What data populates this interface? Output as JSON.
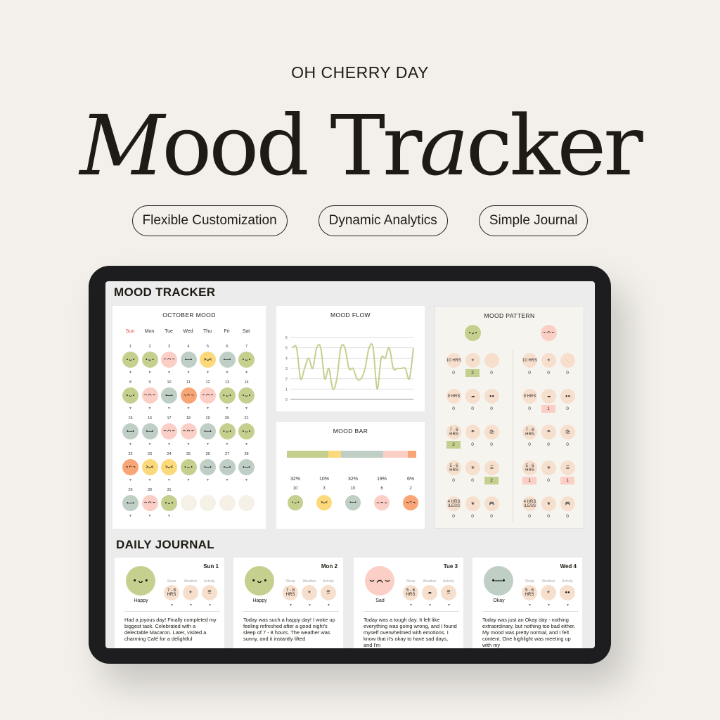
{
  "brand": "OH CHERRY DAY",
  "title": {
    "part1": "M",
    "part2": "ood Tr",
    "part3": "a",
    "part4": "cker"
  },
  "features": [
    "Flexible Customization",
    "Dynamic Analytics",
    "Simple Journal"
  ],
  "app": {
    "header": "MOOD TRACKER",
    "journal_header": "DAILY JOURNAL",
    "moods": {
      "happy": {
        "color": "#c5d08f",
        "face": "• ᴗ •",
        "value": 5
      },
      "excited": {
        "color": "#fcd97a",
        "face": ">ᴗ<",
        "value": 4
      },
      "okay": {
        "color": "#bfcfc6",
        "face": "•—•",
        "value": 3
      },
      "sad": {
        "color": "#fbcfc6",
        "face": "⌣ ⌒ ⌣",
        "value": 2
      },
      "angry": {
        "color": "#f8a676",
        "face": "¬ ᴖ ¬",
        "value": 1
      },
      "empty": {
        "color": "#f6f1e7"
      }
    },
    "calendar": {
      "title": "OCTOBER MOOD",
      "weekdays": [
        "Sun",
        "Mon",
        "Tue",
        "Wed",
        "Thu",
        "Fri",
        "Sat"
      ],
      "sunday_color": "#e0463c",
      "days": [
        "happy",
        "happy",
        "sad",
        "okay",
        "excited",
        "okay",
        "happy",
        "happy",
        "sad",
        "okay",
        "angry",
        "sad",
        "happy",
        "happy",
        "okay",
        "okay",
        "sad",
        "sad",
        "okay",
        "happy",
        "happy",
        "angry",
        "excited",
        "excited",
        "happy",
        "okay",
        "okay",
        "okay",
        "okay",
        "sad",
        "happy"
      ]
    },
    "chart_data": [
      {
        "type": "line",
        "title": "MOOD FLOW",
        "x": [
          1,
          2,
          3,
          4,
          5,
          6,
          7,
          8,
          9,
          10,
          11,
          12,
          13,
          14,
          15,
          16,
          17,
          18,
          19,
          20,
          21,
          22,
          23,
          24,
          25,
          26,
          27,
          28,
          29,
          30,
          31
        ],
        "y": [
          5,
          5,
          2,
          3,
          4,
          3,
          5,
          5,
          2,
          3,
          1,
          2,
          5,
          5,
          3,
          3,
          2,
          2,
          3,
          5,
          5,
          1,
          4,
          4,
          5,
          3,
          3,
          3,
          3,
          2,
          5
        ],
        "ylim": [
          0,
          6
        ],
        "yticks": [
          "0",
          "1",
          "2",
          "3",
          "4",
          "5",
          "6"
        ],
        "grid": true,
        "color": "#c5d08f"
      },
      {
        "type": "bar",
        "title": "MOOD BAR",
        "stacked": true,
        "categories": [
          "happy",
          "excited",
          "okay",
          "sad",
          "angry"
        ],
        "values": [
          10,
          3,
          10,
          6,
          2
        ],
        "percent_labels": [
          "32%",
          "10%",
          "32%",
          "19%",
          "6%"
        ],
        "count_labels": [
          "10",
          "3",
          "10",
          "6",
          "2"
        ]
      }
    ],
    "pattern": {
      "title": "MOOD PATTERN",
      "columns": [
        {
          "mood": "happy",
          "values": [
            [
              0,
              2,
              0
            ],
            [
              0,
              0,
              0
            ],
            [
              2,
              0,
              0
            ],
            [
              0,
              0,
              2
            ],
            [
              0,
              0,
              0
            ]
          ],
          "highlight": "#c5d08f"
        },
        {
          "mood": "sad",
          "values": [
            [
              0,
              0,
              0
            ],
            [
              0,
              1,
              0
            ],
            [
              0,
              0,
              0
            ],
            [
              1,
              0,
              1
            ],
            [
              0,
              0,
              0
            ]
          ],
          "highlight": "#fbcfc6"
        }
      ],
      "sleep": [
        "10 HRS",
        "9 HRS",
        "7 - 8 HRS",
        "5 - 6 HRS",
        "4 HRS /LESS"
      ],
      "weather": [
        "☀",
        "☁",
        "☂",
        "❄",
        "❦"
      ],
      "activity": [
        "🦴",
        "●●",
        "🛍",
        "☰",
        "🎮"
      ]
    },
    "journal": {
      "labels": {
        "sleep": "Sleep",
        "weather": "Weather",
        "activity": "Activity"
      },
      "entries": [
        {
          "day": "Sun 1",
          "mood": "happy",
          "mood_label": "Happy",
          "sleep": "7 - 8 HRS",
          "weather": "☀",
          "activity": "☰",
          "text": "Had a joyous day! Finally completed my biggest task. Celebrated with a delectable Macaron. Later, visited a charming Café for a delightful"
        },
        {
          "day": "Mon 2",
          "mood": "happy",
          "mood_label": "Happy",
          "sleep": "7 - 8 HRS",
          "weather": "☀",
          "activity": "☰",
          "text": "Today was such a happy day! I woke up feeling refreshed after a good night's sleep of 7 - 8 hours. The weather was sunny, and it instantly lifted"
        },
        {
          "day": "Tue 3",
          "mood": "sad",
          "mood_label": "Sad",
          "sleep": "5 - 6 HRS",
          "weather": "☁",
          "activity": "☰",
          "text": "Today was a tough day. It felt like everything was going wrong, and I found myself overwhelmed with emotions. I know that it's okay to have sad days, and I'm"
        },
        {
          "day": "Wed 4",
          "mood": "okay",
          "mood_label": "Okay",
          "sleep": "5 - 6 HRS",
          "weather": "☀",
          "activity": "●●",
          "text": "Today was just an Okay day - nothing extraordinary, but nothing too bad either. My mood was pretty normal, and I felt content. One highlight was meeting up with my"
        }
      ]
    }
  }
}
